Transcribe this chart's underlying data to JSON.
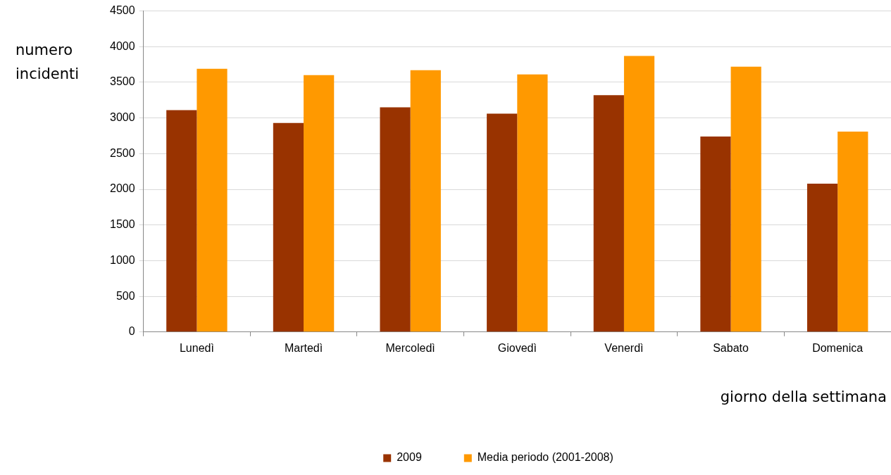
{
  "chart_data": {
    "type": "bar",
    "xlabel": "giorno della settimana",
    "ylabel": "numero incidenti",
    "categories": [
      "Lunedì",
      "Martedì",
      "Mercoledì",
      "Giovedì",
      "Venerdì",
      "Sabato",
      "Domenica"
    ],
    "series": [
      {
        "name": "2009",
        "color": "#993300",
        "values": [
          3110,
          2930,
          3150,
          3060,
          3320,
          2740,
          2080
        ]
      },
      {
        "name": "Media periodo (2001-2008)",
        "color": "#ff9900",
        "values": [
          3690,
          3600,
          3670,
          3610,
          3870,
          3720,
          2810
        ]
      }
    ],
    "ylim": [
      0,
      4500
    ],
    "yticks": [
      0,
      500,
      1000,
      1500,
      2000,
      2500,
      3000,
      3500,
      4000,
      4500
    ],
    "grid": "y",
    "legend": "bottom"
  }
}
